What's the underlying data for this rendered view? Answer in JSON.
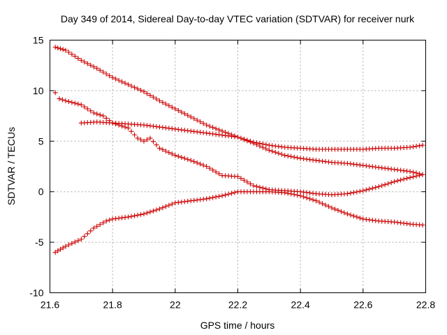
{
  "chart_data": {
    "type": "scatter",
    "title": "Day 349 of 2014, Sidereal Day-to-day VTEC variation (SDTVAR) for receiver nurk",
    "xlabel": "GPS time / hours",
    "ylabel": "SDTVAR / TECUs",
    "xlim": [
      21.6,
      22.8
    ],
    "ylim": [
      -10,
      15
    ],
    "xticks": [
      21.6,
      21.8,
      22.0,
      22.2,
      22.4,
      22.6,
      22.8
    ],
    "xtick_labels": [
      "21.6",
      "21.8",
      "22",
      "22.2",
      "22.4",
      "22.6",
      "22.8"
    ],
    "yticks": [
      -10,
      -5,
      0,
      5,
      10,
      15
    ],
    "ytick_labels": [
      "-10",
      "-5",
      "0",
      "5",
      "10",
      "15"
    ],
    "grid": true,
    "marker": "+",
    "color": "#cc0000",
    "series": [
      {
        "name": "series-1",
        "x": [
          21.617,
          21.65,
          21.7,
          21.75,
          21.8,
          21.85,
          21.9,
          21.95,
          22.0,
          22.05,
          22.1,
          22.15,
          22.2,
          22.25,
          22.3,
          22.35,
          22.4,
          22.45,
          22.5,
          22.55,
          22.6,
          22.65,
          22.7,
          22.75,
          22.79
        ],
        "y": [
          14.3,
          14.0,
          13.0,
          12.2,
          11.3,
          10.6,
          9.9,
          9.0,
          8.2,
          7.4,
          6.6,
          6.0,
          5.4,
          4.9,
          4.6,
          4.4,
          4.3,
          4.2,
          4.2,
          4.2,
          4.2,
          4.3,
          4.3,
          4.4,
          4.6
        ]
      },
      {
        "name": "series-2",
        "x": [
          21.617,
          21.63,
          21.65,
          21.7,
          21.74,
          21.77,
          21.8,
          21.85,
          21.88,
          21.9,
          21.92,
          21.95,
          22.0,
          22.05,
          22.1,
          22.15,
          22.2,
          22.25,
          22.3,
          22.35,
          22.4,
          22.45,
          22.5,
          22.55,
          22.6,
          22.65,
          22.7,
          22.75,
          22.79
        ],
        "y": [
          9.8,
          9.2,
          9.0,
          8.6,
          7.8,
          7.5,
          6.8,
          6.3,
          5.3,
          5.0,
          5.3,
          4.3,
          3.6,
          3.1,
          2.5,
          1.6,
          1.5,
          0.6,
          0.2,
          0.1,
          0.0,
          -0.2,
          -0.3,
          -0.2,
          0.1,
          0.5,
          1.0,
          1.4,
          1.7
        ]
      },
      {
        "name": "series-3",
        "x": [
          21.7,
          21.75,
          21.8,
          21.85,
          21.9,
          21.95,
          22.0,
          22.05,
          22.1,
          22.15,
          22.2,
          22.25,
          22.3,
          22.35,
          22.4,
          22.45,
          22.5,
          22.55,
          22.6,
          22.65,
          22.7,
          22.75,
          22.79
        ],
        "y": [
          6.8,
          6.9,
          6.8,
          6.7,
          6.6,
          6.4,
          6.2,
          6.0,
          5.8,
          5.6,
          5.4,
          4.8,
          4.1,
          3.6,
          3.3,
          3.1,
          2.9,
          2.8,
          2.6,
          2.4,
          2.2,
          2.0,
          1.7
        ]
      },
      {
        "name": "series-4",
        "x": [
          21.617,
          21.65,
          21.7,
          21.74,
          21.78,
          21.8,
          21.85,
          21.9,
          21.95,
          22.0,
          22.05,
          22.1,
          22.15,
          22.2,
          22.25,
          22.3,
          22.35,
          22.4,
          22.45,
          22.5,
          22.55,
          22.6,
          22.65,
          22.7,
          22.75,
          22.79
        ],
        "y": [
          -6.0,
          -5.4,
          -4.7,
          -3.6,
          -2.9,
          -2.7,
          -2.5,
          -2.2,
          -1.7,
          -1.1,
          -0.9,
          -0.7,
          -0.4,
          0.0,
          0.0,
          0.0,
          -0.1,
          -0.4,
          -0.9,
          -1.6,
          -2.2,
          -2.7,
          -2.9,
          -3.0,
          -3.2,
          -3.3
        ]
      }
    ]
  }
}
